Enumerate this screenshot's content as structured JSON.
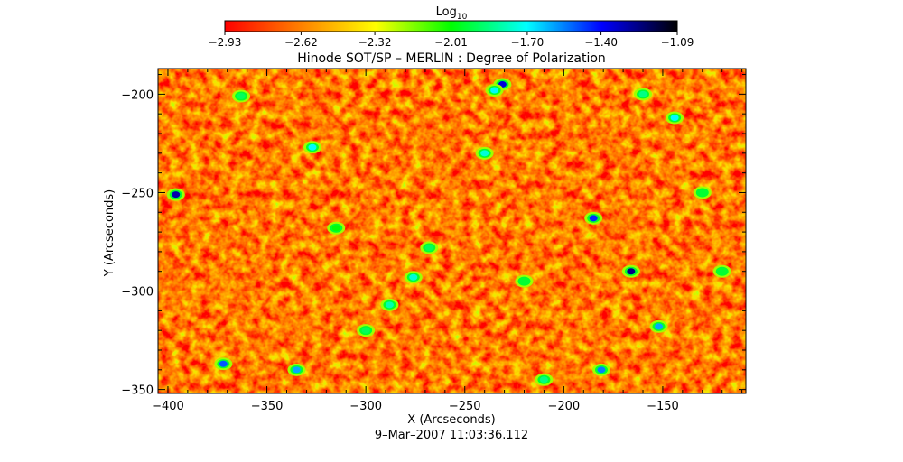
{
  "chart_data": {
    "type": "heatmap",
    "title": "Hinode SOT/SP – MERLIN : Degree of Polarization",
    "xlabel": "X (Arcseconds)",
    "ylabel": "Y (Arcseconds)",
    "date_label": "9–Mar–2007 11:03:36.112",
    "xlim": [
      -405,
      -108
    ],
    "ylim": [
      -352,
      -187
    ],
    "xticks": [
      -400,
      -350,
      -300,
      -250,
      -200,
      -150
    ],
    "xtick_labels": [
      "−400",
      "−350",
      "−300",
      "−250",
      "−200",
      "−150"
    ],
    "yticks": [
      -200,
      -250,
      -300,
      -350
    ],
    "ytick_labels": [
      "−200",
      "−250",
      "−300",
      "−350"
    ],
    "grid": false,
    "colorbar": {
      "title": "Log",
      "title_subscript": "10",
      "range": [
        -2.93,
        -1.09
      ],
      "tick_values": [
        -2.93,
        -2.62,
        -2.32,
        -2.01,
        -1.7,
        -1.4,
        -1.09
      ],
      "tick_labels": [
        "−2.93",
        "−2.62",
        "−2.32",
        "−2.01",
        "−1.70",
        "−1.40",
        "−1.09"
      ],
      "colormap": [
        "#ff0000",
        "#ff7f00",
        "#ffff00",
        "#00ff00",
        "#00ffff",
        "#0000ff",
        "#000000"
      ]
    },
    "features": [
      {
        "x": -166,
        "y": -290,
        "value": -1.25
      },
      {
        "x": -396,
        "y": -251,
        "value": -1.3
      },
      {
        "x": -231,
        "y": -195,
        "value": -1.35
      },
      {
        "x": -185,
        "y": -263,
        "value": -1.45
      },
      {
        "x": -372,
        "y": -337,
        "value": -1.5
      },
      {
        "x": -181,
        "y": -340,
        "value": -1.55
      },
      {
        "x": -152,
        "y": -318,
        "value": -1.6
      },
      {
        "x": -327,
        "y": -227,
        "value": -1.7
      },
      {
        "x": -276,
        "y": -293,
        "value": -1.75
      },
      {
        "x": -288,
        "y": -307,
        "value": -1.8
      },
      {
        "x": -144,
        "y": -212,
        "value": -1.7
      },
      {
        "x": -240,
        "y": -230,
        "value": -1.75
      },
      {
        "x": -235,
        "y": -198,
        "value": -1.7
      },
      {
        "x": -335,
        "y": -340,
        "value": -1.6
      },
      {
        "x": -363,
        "y": -201,
        "value": -1.9
      },
      {
        "x": -268,
        "y": -278,
        "value": -1.9
      },
      {
        "x": -220,
        "y": -295,
        "value": -1.95
      },
      {
        "x": -120,
        "y": -290,
        "value": -1.95
      },
      {
        "x": -210,
        "y": -345,
        "value": -1.85
      },
      {
        "x": -300,
        "y": -320,
        "value": -1.9
      },
      {
        "x": -315,
        "y": -268,
        "value": -2.0
      },
      {
        "x": -160,
        "y": -200,
        "value": -1.85
      },
      {
        "x": -130,
        "y": -250,
        "value": -1.95
      }
    ]
  }
}
